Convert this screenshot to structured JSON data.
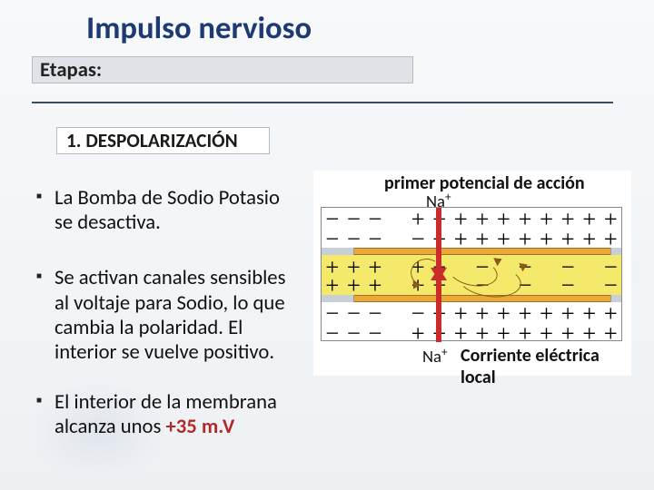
{
  "title": {
    "text": "Impulso nervioso",
    "fontsize_pt": 26,
    "color": "#1e3a72",
    "weight": 700
  },
  "etapas_label": {
    "text": "Etapas:",
    "fontsize_pt": 17,
    "box_bg": "#dfe2e6",
    "box_border": "#b8bcc2"
  },
  "underline_color": "#3a4a63",
  "stage": {
    "number": "1.",
    "name": "DESPOLARIZACIÓN",
    "full": "1. DESPOLARIZACIÓN",
    "fontsize_pt": 16,
    "box_bg": "#ffffff",
    "box_border": "#b8bcc2"
  },
  "bullets": {
    "fontsize_pt": 17,
    "items": [
      "La Bomba de Sodio Potasio se desactiva.",
      "Se activan canales sensibles al voltaje para Sodio, lo que cambia la polaridad. El interior se vuelve positivo.",
      " El interior de la membrana alcanza unos "
    ],
    "mv_value": "+35 m.V"
  },
  "diagram": {
    "title": "primer potencial de acción",
    "na_label": "Na",
    "na_sup": "+",
    "bottom_label": "Corriente eléctrica local",
    "label_fontsize_pt": 15,
    "ion_fontsize_pt": 14,
    "colors": {
      "membrane": "#eaa83a",
      "membrane_border": "#a07020",
      "interior": "#f4e96b",
      "cap": "#c9cfd6",
      "arrow": "#cc2b2b",
      "curve": "#8a5a1a",
      "diagram_bg": "#ffffff",
      "diagram_border": "#888888"
    },
    "charges": {
      "sign_fontsize_pt": 20,
      "row_top_outer": [
        "−",
        "−",
        "−",
        "",
        "+",
        "+",
        "+",
        "+",
        "+",
        "+",
        "+",
        "+",
        "+",
        "+"
      ],
      "row_top_inner": [
        "−",
        "−",
        "−",
        "",
        "−",
        "+",
        "+",
        "+",
        "+",
        "+",
        "+",
        "+",
        "+",
        "+"
      ],
      "row_mid_upper": [
        "+",
        "+",
        "+",
        "",
        "+",
        "−",
        "",
        "−",
        "",
        "−",
        "",
        "−",
        "",
        "−"
      ],
      "row_mid_lower": [
        "+",
        "+",
        "+",
        "",
        "+",
        "−",
        "",
        "−",
        "",
        "−",
        "",
        "−",
        "",
        "−"
      ],
      "row_bot_inner": [
        "−",
        "−",
        "−",
        "",
        "−",
        "+",
        "+",
        "+",
        "+",
        "+",
        "+",
        "+",
        "+",
        "+"
      ],
      "row_bot_outer": [
        "−",
        "−",
        "−",
        "",
        "+",
        "+",
        "+",
        "+",
        "+",
        "+",
        "+",
        "+",
        "+",
        "+"
      ]
    }
  },
  "background_color": "#f5f7f9"
}
